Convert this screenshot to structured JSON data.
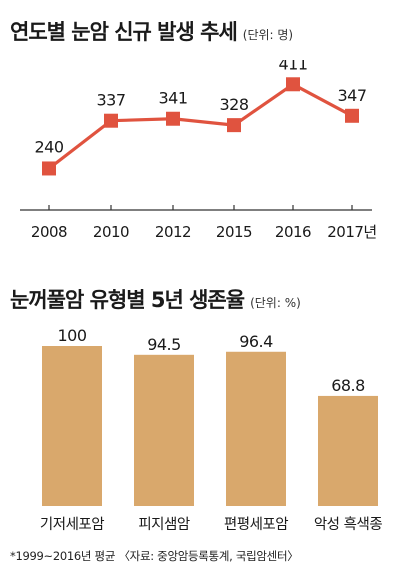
{
  "line_chart": {
    "title": "연도별 눈암 신규 발생 추세",
    "unit": "(단위: 명)"
  },
  "bar_chart": {
    "title": "눈꺼풀암 유형별 5년 생존율",
    "unit": "(단위: %)"
  },
  "source": "*1999~2016년 평균 〈자료: 중앙암등록통계, 국립암센터〉",
  "colors": {
    "line": "#e0533f",
    "bar": "#d9a86c",
    "axis": "#333333"
  },
  "chart_data": [
    {
      "type": "line",
      "title": "연도별 눈암 신규 발생 추세",
      "x": [
        "2008",
        "2010",
        "2012",
        "2015",
        "2016",
        "2017년"
      ],
      "values": [
        240,
        337,
        341,
        328,
        411,
        347
      ],
      "data_labels": [
        "240",
        "337",
        "341",
        "328",
        "411",
        "347"
      ],
      "ylim": [
        180,
        440
      ],
      "grid": false
    },
    {
      "type": "bar",
      "title": "눈꺼풀암 유형별 5년 생존율",
      "categories": [
        "기저세포암",
        "피지샘암",
        "편평세포암",
        "악성 흑색종"
      ],
      "values": [
        100,
        94.5,
        96.4,
        68.8
      ],
      "data_labels": [
        "100",
        "94.5",
        "96.4",
        "68.8"
      ],
      "ylim": [
        0,
        100
      ],
      "grid": false
    }
  ]
}
